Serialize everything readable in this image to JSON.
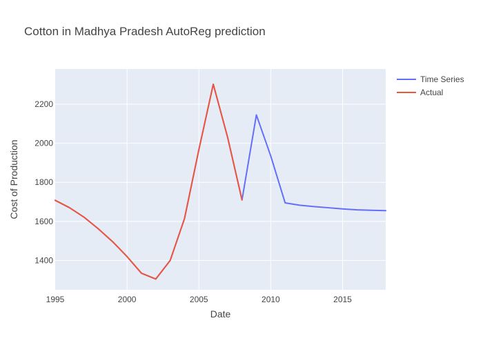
{
  "chart_data": {
    "type": "line",
    "title": "Cotton in Madhya Pradesh AutoReg prediction",
    "xlabel": "Date",
    "ylabel": "Cost of Production",
    "xlim": [
      1995,
      2018
    ],
    "ylim": [
      1250,
      2380
    ],
    "x_ticks": [
      1995,
      2000,
      2005,
      2010,
      2015
    ],
    "y_ticks": [
      1400,
      1600,
      1800,
      2000,
      2200
    ],
    "grid": true,
    "legend_position": "top-right",
    "plot_background": "#e5ecf6",
    "series": [
      {
        "name": "Time Series",
        "color": "#636efa",
        "x": [
          1995,
          1996,
          1997,
          1998,
          1999,
          2000,
          2001,
          2002,
          2003,
          2004,
          2005,
          2006,
          2007,
          2008,
          2009,
          2010,
          2011,
          2012,
          2013,
          2014,
          2015,
          2016,
          2017,
          2018
        ],
        "y": [
          1708,
          1670,
          1622,
          1562,
          1496,
          1420,
          1335,
          1305,
          1400,
          1615,
          1968,
          2302,
          2030,
          1710,
          2145,
          1935,
          1695,
          1683,
          1676,
          1670,
          1664,
          1659,
          1657,
          1655
        ]
      },
      {
        "name": "Actual",
        "color": "#ef553b",
        "x": [
          1995,
          1996,
          1997,
          1998,
          1999,
          2000,
          2001,
          2002,
          2003,
          2004,
          2005,
          2006,
          2007,
          2008
        ],
        "y": [
          1708,
          1670,
          1622,
          1562,
          1496,
          1420,
          1335,
          1305,
          1400,
          1615,
          1968,
          2302,
          2030,
          1710
        ]
      }
    ]
  }
}
